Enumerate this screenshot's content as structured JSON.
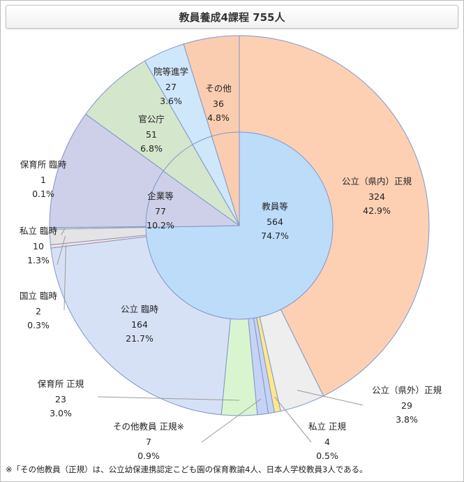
{
  "title": "教員養成4課程 755人",
  "footnote": "※「その他教員（正規）は、公立幼保連携認定こども園の保育教諭4人、日本人学校教員3人である。",
  "chart_data": {
    "type": "pie",
    "title": "教員養成4課程 755人",
    "total": 755,
    "inner": [
      {
        "label": "教員等",
        "value": 564,
        "percent": "74.7%",
        "color": "#bcdcfa"
      },
      {
        "label": "企業等",
        "value": 77,
        "percent": "10.2%",
        "color": "#cdd0e8"
      },
      {
        "label": "官公庁",
        "value": 51,
        "percent": "6.8%",
        "color": "#d4e6cc"
      },
      {
        "label": "院等進学",
        "value": 27,
        "percent": "3.6%",
        "color": "#cfe7fb"
      },
      {
        "label": "その他",
        "value": 36,
        "percent": "4.8%",
        "color": "#fbcdb0"
      }
    ],
    "outer": [
      {
        "label": "公立（県内）正規",
        "value": 324,
        "percent": "42.9%",
        "color": "#fdd0b4"
      },
      {
        "label": "公立（県外）正規",
        "value": 29,
        "percent": "3.8%",
        "color": "#eeeeee"
      },
      {
        "label": "私立 正規",
        "value": 4,
        "percent": "0.5%",
        "color": "#ffe88a"
      },
      {
        "label": "",
        "value": 4,
        "percent": "",
        "color": "#c6d3f4"
      },
      {
        "label": "その他教員 正規※",
        "value": 7,
        "percent": "0.9%",
        "color": "#c6d3f4"
      },
      {
        "label": "保育所 正規",
        "value": 23,
        "percent": "3.0%",
        "color": "#d9f5d0"
      },
      {
        "label": "公立 臨時",
        "value": 164,
        "percent": "21.7%",
        "color": "#d7e1f6"
      },
      {
        "label": "国立 臨時",
        "value": 2,
        "percent": "0.3%",
        "color": "#ffe2d6"
      },
      {
        "label": "私立 臨時",
        "value": 10,
        "percent": "1.3%",
        "color": "#e4e4e4"
      },
      {
        "label": "保育所 臨時",
        "value": 1,
        "percent": "0.1%",
        "color": "#e8f1d2"
      },
      {
        "label": "企業等",
        "value": 77,
        "percent": "",
        "color": "#cdd0e8"
      },
      {
        "label": "官公庁",
        "value": 51,
        "percent": "",
        "color": "#d4e6cc"
      },
      {
        "label": "院等進学",
        "value": 27,
        "percent": "",
        "color": "#cfe7fb"
      },
      {
        "label": "その他",
        "value": 36,
        "percent": "",
        "color": "#fbcdb0"
      }
    ]
  }
}
